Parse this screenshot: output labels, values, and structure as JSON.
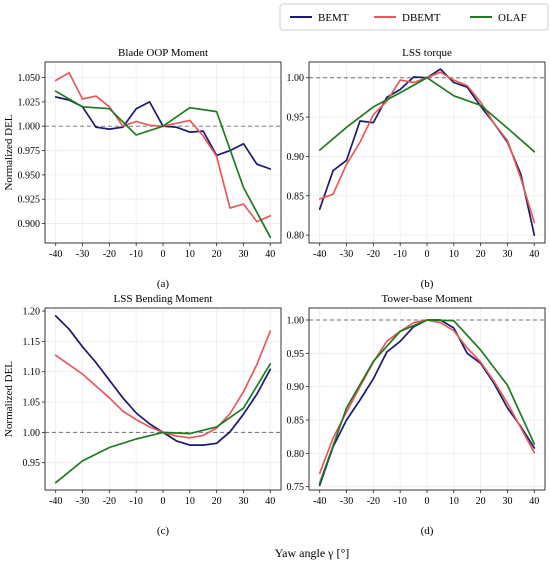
{
  "xlabel": "Yaw angle γ [°]",
  "legend": [
    {
      "name": "BEMT",
      "color": "#1a1a6e"
    },
    {
      "name": "DBEMT",
      "color": "#e8595a"
    },
    {
      "name": "OLAF",
      "color": "#1f7a1f"
    }
  ],
  "chart_data": [
    {
      "type": "line",
      "title": "Blade OOP Moment",
      "panel_label": "(a)",
      "ylabel": "Normalized DEL",
      "xlim": [
        -44,
        44
      ],
      "ylim": [
        0.88,
        1.066
      ],
      "xticks": [
        -40,
        -30,
        -20,
        -10,
        0,
        10,
        20,
        30,
        40
      ],
      "yticks": [
        0.9,
        0.925,
        0.95,
        0.975,
        1.0,
        1.025,
        1.05
      ],
      "ytick_labels": [
        "0.900",
        "0.925",
        "0.950",
        "0.975",
        "1.000",
        "1.025",
        "1.050"
      ],
      "reference_line": 1.0,
      "grid": true,
      "series": [
        {
          "name": "BEMT",
          "color": "#1a1a6e",
          "x": [
            -40,
            -35,
            -30,
            -25,
            -20,
            -15,
            -10,
            -5,
            0,
            5,
            10,
            15,
            20,
            25,
            30,
            35,
            40
          ],
          "y": [
            1.03,
            1.027,
            1.02,
            0.999,
            0.997,
            0.999,
            1.018,
            1.025,
            1.0,
            0.999,
            0.994,
            0.995,
            0.97,
            0.975,
            0.982,
            0.961,
            0.956
          ]
        },
        {
          "name": "DBEMT",
          "color": "#e8595a",
          "x": [
            -40,
            -35,
            -30,
            -25,
            -20,
            -15,
            -10,
            -5,
            0,
            5,
            10,
            15,
            20,
            25,
            30,
            35,
            40
          ],
          "y": [
            1.047,
            1.055,
            1.028,
            1.031,
            1.02,
            1.0,
            1.005,
            1.001,
            1.0,
            1.003,
            1.006,
            0.99,
            0.969,
            0.916,
            0.92,
            0.902,
            0.908
          ]
        },
        {
          "name": "OLAF",
          "color": "#1f7a1f",
          "x": [
            -40,
            -30,
            -20,
            -10,
            0,
            10,
            20,
            30,
            40
          ],
          "y": [
            1.036,
            1.02,
            1.018,
            0.991,
            1.0,
            1.019,
            1.015,
            0.937,
            0.886
          ]
        }
      ]
    },
    {
      "type": "line",
      "title": "LSS torque",
      "panel_label": "(b)",
      "ylabel": "",
      "xlim": [
        -44,
        44
      ],
      "ylim": [
        0.79,
        1.02
      ],
      "xticks": [
        -40,
        -30,
        -20,
        -10,
        0,
        10,
        20,
        30,
        40
      ],
      "yticks": [
        0.8,
        0.85,
        0.9,
        0.95,
        1.0
      ],
      "ytick_labels": [
        "0.80",
        "0.85",
        "0.90",
        "0.95",
        "1.00"
      ],
      "reference_line": 1.0,
      "grid": true,
      "series": [
        {
          "name": "BEMT",
          "color": "#1a1a6e",
          "x": [
            -40,
            -35,
            -30,
            -25,
            -20,
            -15,
            -10,
            -5,
            0,
            5,
            10,
            15,
            20,
            25,
            30,
            35,
            40
          ],
          "y": [
            0.833,
            0.882,
            0.895,
            0.945,
            0.943,
            0.975,
            0.985,
            1.001,
            1.0,
            1.011,
            0.994,
            0.988,
            0.964,
            0.942,
            0.918,
            0.877,
            0.8
          ]
        },
        {
          "name": "DBEMT",
          "color": "#e8595a",
          "x": [
            -40,
            -35,
            -30,
            -25,
            -20,
            -15,
            -10,
            -5,
            0,
            5,
            10,
            15,
            20,
            25,
            30,
            35,
            40
          ],
          "y": [
            0.846,
            0.852,
            0.89,
            0.918,
            0.953,
            0.97,
            0.997,
            0.994,
            1.0,
            1.007,
            0.997,
            0.99,
            0.969,
            0.942,
            0.92,
            0.872,
            0.816
          ]
        },
        {
          "name": "OLAF",
          "color": "#1f7a1f",
          "x": [
            -40,
            -30,
            -20,
            -10,
            0,
            10,
            20,
            30,
            40
          ],
          "y": [
            0.908,
            0.937,
            0.963,
            0.981,
            1.0,
            0.977,
            0.965,
            0.936,
            0.906
          ]
        }
      ]
    },
    {
      "type": "line",
      "title": "LSS Bending Moment",
      "panel_label": "(c)",
      "ylabel": "Normalized DEL",
      "xlim": [
        -44,
        44
      ],
      "ylim": [
        0.905,
        1.205
      ],
      "xticks": [
        -40,
        -30,
        -20,
        -10,
        0,
        10,
        20,
        30,
        40
      ],
      "yticks": [
        0.95,
        1.0,
        1.05,
        1.1,
        1.15,
        1.2
      ],
      "ytick_labels": [
        "0.95",
        "1.00",
        "1.05",
        "1.10",
        "1.15",
        "1.20"
      ],
      "reference_line": 1.0,
      "grid": true,
      "series": [
        {
          "name": "BEMT",
          "color": "#1a1a6e",
          "x": [
            -40,
            -35,
            -30,
            -25,
            -20,
            -15,
            -10,
            -5,
            0,
            5,
            10,
            15,
            20,
            25,
            30,
            35,
            40
          ],
          "y": [
            1.192,
            1.17,
            1.141,
            1.115,
            1.086,
            1.057,
            1.032,
            1.014,
            1.0,
            0.986,
            0.979,
            0.979,
            0.982,
            1.001,
            1.03,
            1.063,
            1.104
          ]
        },
        {
          "name": "DBEMT",
          "color": "#e8595a",
          "x": [
            -40,
            -30,
            -20,
            -15,
            -10,
            -5,
            0,
            5,
            10,
            15,
            20,
            25,
            30,
            35,
            40
          ],
          "y": [
            1.127,
            1.096,
            1.057,
            1.035,
            1.021,
            1.009,
            1.0,
            0.994,
            0.991,
            0.995,
            1.007,
            1.031,
            1.067,
            1.112,
            1.167
          ]
        },
        {
          "name": "OLAF",
          "color": "#1f7a1f",
          "x": [
            -40,
            -30,
            -20,
            -10,
            0,
            10,
            20,
            30,
            40
          ],
          "y": [
            0.917,
            0.953,
            0.975,
            0.989,
            1.0,
            0.998,
            1.009,
            1.04,
            1.113
          ]
        }
      ]
    },
    {
      "type": "line",
      "title": "Tower-base Moment",
      "panel_label": "(d)",
      "ylabel": "",
      "xlim": [
        -44,
        44
      ],
      "ylim": [
        0.745,
        1.018
      ],
      "xticks": [
        -40,
        -30,
        -20,
        -10,
        0,
        10,
        20,
        30,
        40
      ],
      "yticks": [
        0.75,
        0.8,
        0.85,
        0.9,
        0.95,
        1.0
      ],
      "ytick_labels": [
        "0.75",
        "0.80",
        "0.85",
        "0.90",
        "0.95",
        "1.00"
      ],
      "reference_line": 1.0,
      "grid": true,
      "series": [
        {
          "name": "BEMT",
          "color": "#1a1a6e",
          "x": [
            -40,
            -35,
            -30,
            -25,
            -20,
            -15,
            -10,
            -5,
            0,
            5,
            10,
            15,
            20,
            25,
            30,
            35,
            40
          ],
          "y": [
            0.752,
            0.81,
            0.85,
            0.88,
            0.912,
            0.952,
            0.968,
            0.99,
            1.0,
            1.0,
            0.988,
            0.95,
            0.935,
            0.905,
            0.868,
            0.84,
            0.808
          ]
        },
        {
          "name": "DBEMT",
          "color": "#e8595a",
          "x": [
            -40,
            -35,
            -30,
            -25,
            -20,
            -15,
            -10,
            -5,
            0,
            5,
            10,
            15,
            20,
            25,
            30,
            35,
            40
          ],
          "y": [
            0.77,
            0.823,
            0.862,
            0.9,
            0.937,
            0.968,
            0.983,
            0.996,
            1.0,
            0.996,
            0.984,
            0.958,
            0.937,
            0.908,
            0.875,
            0.838,
            0.801
          ]
        },
        {
          "name": "OLAF",
          "color": "#1f7a1f",
          "x": [
            -40,
            -30,
            -20,
            -10,
            0,
            10,
            20,
            30,
            40
          ],
          "y": [
            0.755,
            0.868,
            0.938,
            0.983,
            1.0,
            0.999,
            0.955,
            0.902,
            0.814
          ]
        }
      ]
    }
  ]
}
